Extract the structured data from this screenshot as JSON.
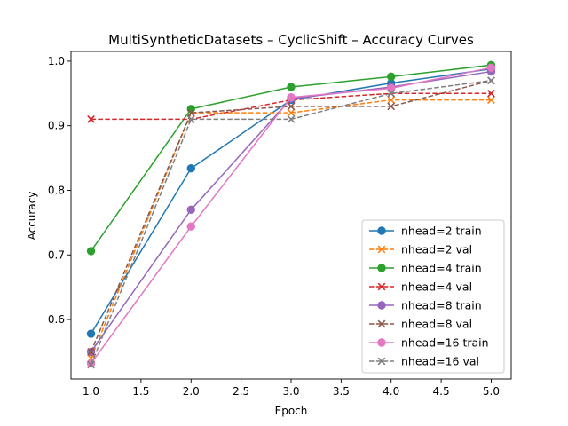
{
  "chart_data": {
    "type": "line",
    "title": "MultiSyntheticDatasets – CyclicShift – Accuracy Curves",
    "xlabel": "Epoch",
    "ylabel": "Accuracy",
    "x": [
      1,
      2,
      3,
      4,
      5
    ],
    "xlim": [
      0.8,
      5.2
    ],
    "ylim": [
      0.508,
      1.015
    ],
    "xticks": [
      1.0,
      1.5,
      2.0,
      2.5,
      3.0,
      3.5,
      4.0,
      4.5,
      5.0
    ],
    "yticks": [
      0.6,
      0.7,
      0.8,
      0.9,
      1.0
    ],
    "xtick_labels": [
      "1.0",
      "1.5",
      "2.0",
      "2.5",
      "3.0",
      "3.5",
      "4.0",
      "4.5",
      "5.0"
    ],
    "ytick_labels": [
      "0.6",
      "0.7",
      "0.8",
      "0.9",
      "1.0"
    ],
    "grid": false,
    "legend_position": "lower-right",
    "series": [
      {
        "name": "nhead=2 train",
        "color": "#1f77b4",
        "style": "solid",
        "marker": "circle",
        "values": [
          0.578,
          0.834,
          0.94,
          0.966,
          0.988
        ]
      },
      {
        "name": "nhead=2 val",
        "color": "#ff7f0e",
        "style": "dashed",
        "marker": "x",
        "values": [
          0.54,
          0.92,
          0.92,
          0.94,
          0.94
        ]
      },
      {
        "name": "nhead=4 train",
        "color": "#2ca02c",
        "style": "solid",
        "marker": "circle",
        "values": [
          0.706,
          0.926,
          0.96,
          0.976,
          0.994
        ]
      },
      {
        "name": "nhead=4 val",
        "color": "#d62728",
        "style": "dashed",
        "marker": "x",
        "values": [
          0.91,
          0.91,
          0.94,
          0.95,
          0.95
        ]
      },
      {
        "name": "nhead=8 train",
        "color": "#9467bd",
        "style": "solid",
        "marker": "circle",
        "values": [
          0.55,
          0.77,
          0.942,
          0.96,
          0.984
        ]
      },
      {
        "name": "nhead=8 val",
        "color": "#8c564b",
        "style": "dashed",
        "marker": "x",
        "values": [
          0.55,
          0.92,
          0.93,
          0.93,
          0.97
        ]
      },
      {
        "name": "nhead=16 train",
        "color": "#e377c2",
        "style": "solid",
        "marker": "circle",
        "values": [
          0.532,
          0.744,
          0.944,
          0.958,
          0.99
        ]
      },
      {
        "name": "nhead=16 val",
        "color": "#7f7f7f",
        "style": "dashed",
        "marker": "x",
        "values": [
          0.53,
          0.91,
          0.91,
          0.95,
          0.97
        ]
      }
    ]
  }
}
